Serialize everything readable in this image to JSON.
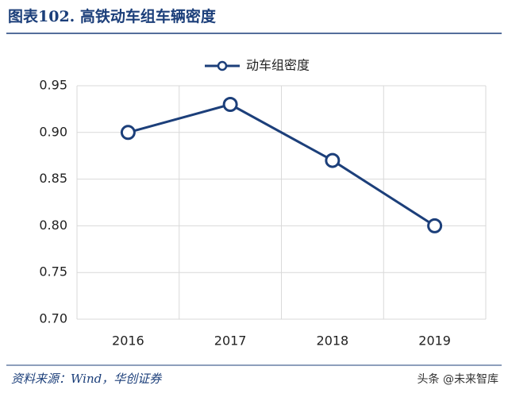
{
  "chart_data": {
    "type": "line",
    "title": "图表102. 高铁动车组车辆密度",
    "categories": [
      "2016",
      "2017",
      "2018",
      "2019"
    ],
    "series": [
      {
        "name": "动车组密度",
        "color": "#1c3f7a",
        "values": [
          0.9,
          0.93,
          0.87,
          0.8
        ]
      }
    ],
    "ylim": [
      0.7,
      0.95
    ],
    "yticks": [
      {
        "value": 0.7,
        "label": "0.70"
      },
      0.75,
      {
        "value": 0.8,
        "label": "0.80"
      },
      0.85,
      {
        "value": 0.9,
        "label": "0.90"
      },
      0.95
    ],
    "grid": true,
    "legend": "top",
    "source": "资料来源：Wind，华创证券",
    "watermark": "头条 @未来智库"
  }
}
